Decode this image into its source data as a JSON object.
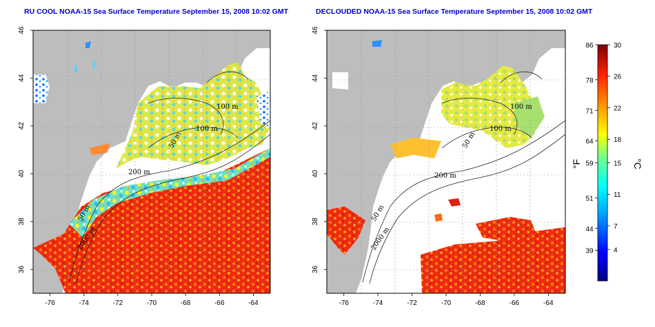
{
  "panels": [
    {
      "title": "RU COOL NOAA-15 Sea Surface Temperature September 15, 2008 10:02 GMT",
      "contour_labels": [
        "100 m",
        "100 m",
        "50 m",
        "200 m",
        "50 m",
        "2000 m"
      ]
    },
    {
      "title": "DECLOUDED NOAA-15 Sea Surface Temperature September 15, 2008 10:02 GMT",
      "contour_labels": [
        "100 m",
        "100 m",
        "50 m",
        "200 m",
        "50 m",
        "2000 m"
      ]
    }
  ],
  "axes": {
    "lon_ticks": [
      "-76",
      "-74",
      "-72",
      "-70",
      "-68",
      "-66",
      "-64"
    ],
    "lat_ticks": [
      "46",
      "44",
      "42",
      "40",
      "38",
      "36"
    ]
  },
  "colorbar": {
    "f_labels": [
      "86",
      "78",
      "71",
      "64",
      "59",
      "51",
      "44",
      "39"
    ],
    "c_labels": [
      "30",
      "26",
      "22",
      "18",
      "15",
      "11",
      "7",
      "4"
    ],
    "f_unit": "°F",
    "c_unit": "°C"
  },
  "colors": {
    "land": "#bdbdbd",
    "cloud": "#ffffff",
    "title": "#0000cc",
    "scale": [
      "#000080",
      "#0000ff",
      "#00a0ff",
      "#00ffff",
      "#70ff90",
      "#ffff00",
      "#ff9900",
      "#ff2200",
      "#800000"
    ]
  }
}
